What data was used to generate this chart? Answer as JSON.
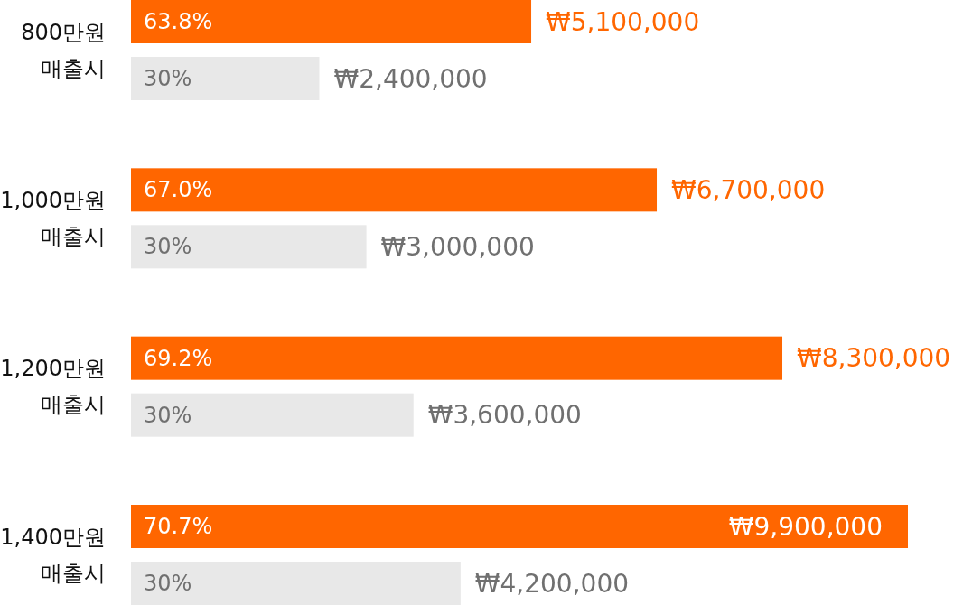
{
  "chart_data": {
    "type": "bar",
    "orientation": "horizontal",
    "categories": [
      "800만원 매출시",
      "1,000만원 매출시",
      "1,200만원 매출시",
      "1,400만원 매출시"
    ],
    "series": [
      {
        "color": "#ff6600",
        "values": [
          5100000,
          6700000,
          8300000,
          9900000
        ],
        "value_labels": [
          "₩5,100,000",
          "₩6,700,000",
          "₩8,300,000",
          "₩9,900,000"
        ]
      },
      {
        "color": "#e8e8e8",
        "values": [
          2400000,
          3000000,
          3600000,
          4200000
        ],
        "value_labels": [
          "₩2,400,000",
          "₩3,000,000",
          "₩3,600,000",
          "₩4,200,000"
        ]
      }
    ],
    "annotations": [
      "63.8%",
      "30%",
      "67.0%",
      "30%",
      "69.2%",
      "30%",
      "70.7%",
      "30%"
    ]
  }
}
